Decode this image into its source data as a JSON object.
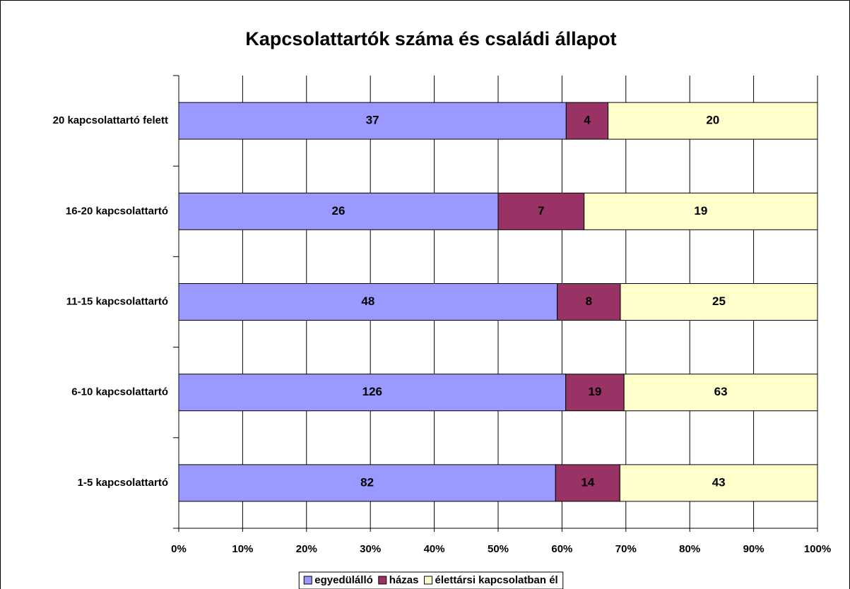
{
  "chart_data": {
    "type": "bar",
    "orientation": "horizontal",
    "stack": "percent",
    "title": "Kapcsolattartók száma és családi állapot",
    "categories": [
      "20 kapcsolattartó felett",
      "16-20 kapcsolattartó",
      "11-15 kapcsolattartó",
      "6-10 kapcsolattartó",
      "1-5 kapcsolattartó"
    ],
    "series": [
      {
        "name": "egyedülálló",
        "color": "#9999ff",
        "values": [
          37,
          26,
          48,
          126,
          82
        ]
      },
      {
        "name": "házas",
        "color": "#993366",
        "values": [
          4,
          7,
          8,
          19,
          14
        ]
      },
      {
        "name": "élettársi kapcsolatban él",
        "color": "#ffffcc",
        "values": [
          20,
          19,
          25,
          63,
          43
        ]
      }
    ],
    "xlim": [
      0,
      100
    ],
    "xticks": [
      {
        "value": 0,
        "label": "0%"
      },
      {
        "value": 10,
        "label": "10%"
      },
      {
        "value": 20,
        "label": "20%"
      },
      {
        "value": 30,
        "label": "30%"
      },
      {
        "value": 40,
        "label": "40%"
      },
      {
        "value": 50,
        "label": "50%"
      },
      {
        "value": 60,
        "label": "60%"
      },
      {
        "value": 70,
        "label": "70%"
      },
      {
        "value": 80,
        "label": "80%"
      },
      {
        "value": 90,
        "label": "90%"
      },
      {
        "value": 100,
        "label": "100%"
      }
    ],
    "grid": true,
    "legend": "bottom"
  }
}
